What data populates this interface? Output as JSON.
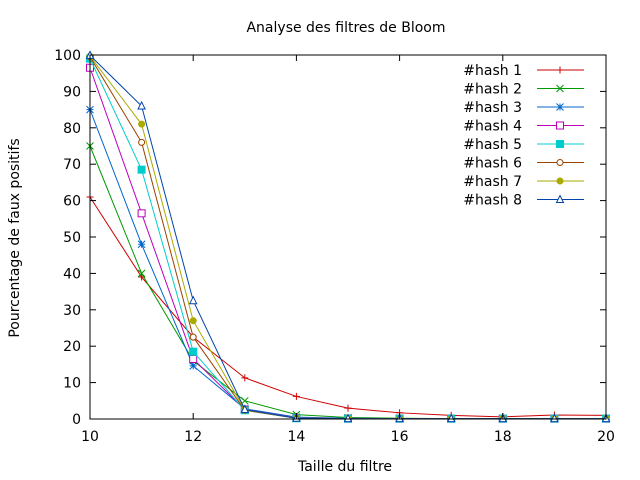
{
  "chart_data": {
    "type": "line",
    "title": "Analyse des filtres de Bloom",
    "xlabel": "Taille du filtre",
    "ylabel": "Pourcentage de faux positifs",
    "xlim": [
      10,
      20
    ],
    "ylim": [
      0,
      100
    ],
    "xticks": [
      10,
      12,
      14,
      16,
      18,
      20
    ],
    "yticks": [
      0,
      10,
      20,
      30,
      40,
      50,
      60,
      70,
      80,
      90,
      100
    ],
    "grid": false,
    "legend_position": "top-right",
    "x": [
      10,
      11,
      12,
      13,
      14,
      15,
      16,
      17,
      18,
      19,
      20
    ],
    "series": [
      {
        "name": "#hash 1",
        "color": "#cc0000",
        "marker": "plus",
        "values": [
          61,
          39,
          22.5,
          11.3,
          6.2,
          3.0,
          1.7,
          1.0,
          0.6,
          1.1,
          1.0
        ]
      },
      {
        "name": "#hash 2",
        "color": "#009900",
        "marker": "x",
        "values": [
          75,
          40,
          16,
          5,
          1.2,
          0.4,
          0.2,
          0.1,
          0.1,
          0.1,
          0.1
        ]
      },
      {
        "name": "#hash 3",
        "color": "#0066cc",
        "marker": "star",
        "values": [
          85,
          48,
          14.6,
          2.8,
          0.5,
          0.2,
          0.1,
          0.1,
          0.1,
          0.1,
          0.1
        ]
      },
      {
        "name": "#hash 4",
        "color": "#bb00bb",
        "marker": "square-open",
        "values": [
          96.5,
          56.5,
          16.5,
          2.6,
          0.3,
          0.1,
          0.1,
          0.1,
          0.1,
          0.1,
          0.1
        ]
      },
      {
        "name": "#hash 5",
        "color": "#00cccc",
        "marker": "square-filled",
        "values": [
          99,
          68.5,
          18.5,
          2.4,
          0.2,
          0.1,
          0.1,
          0.1,
          0.1,
          0.1,
          0.1
        ]
      },
      {
        "name": "#hash 6",
        "color": "#994400",
        "marker": "circle-open",
        "values": [
          99.5,
          76,
          22.5,
          2.4,
          0.2,
          0.1,
          0.1,
          0.1,
          0.1,
          0.1,
          0.1
        ]
      },
      {
        "name": "#hash 7",
        "color": "#aaaa00",
        "marker": "circle-filled",
        "values": [
          99.7,
          81,
          27,
          2.5,
          0.2,
          0.1,
          0.1,
          0.1,
          0.1,
          0.1,
          0.1
        ]
      },
      {
        "name": "#hash 8",
        "color": "#0044aa",
        "marker": "triangle-open",
        "values": [
          99.9,
          86,
          32.5,
          2.6,
          0.2,
          0.1,
          0.1,
          0.1,
          0.1,
          0.1,
          0.1
        ]
      }
    ]
  }
}
